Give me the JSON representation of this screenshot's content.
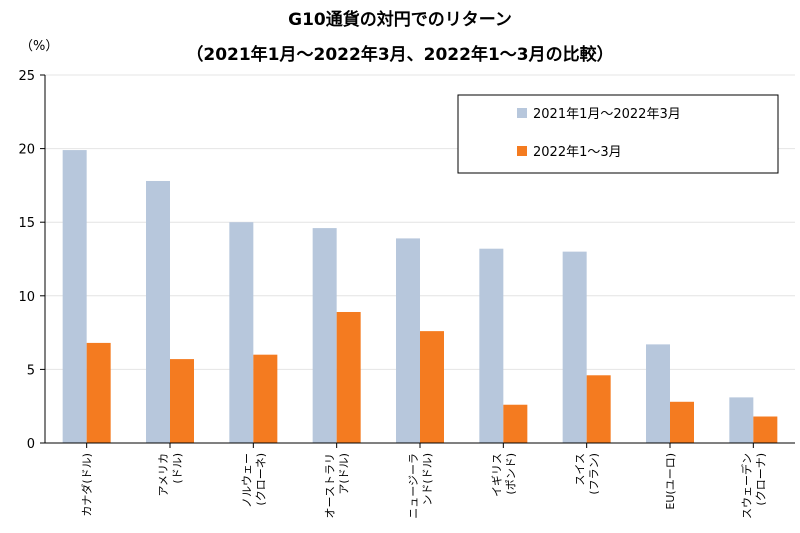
{
  "chart_data": {
    "type": "bar",
    "title": "G10通貨の対円でのリターン",
    "subtitle": "（2021年1月～2022年3月、2022年1～3月の比較）",
    "ylabel": "（%）",
    "ylim": [
      0,
      25
    ],
    "yticks": [
      "0",
      "5",
      "10",
      "15",
      "20",
      "25"
    ],
    "grid": true,
    "legend_position": "top-right",
    "categories": [
      [
        "カナダ(ドル)"
      ],
      [
        "アメリカ",
        "(ドル)"
      ],
      [
        "ノルウェー",
        "(クローネ)"
      ],
      [
        "オーストラリ",
        "ア(ドル)"
      ],
      [
        "ニュージーラ",
        "ンド(ドル)"
      ],
      [
        "イギリス",
        "(ポンド)"
      ],
      [
        "スイス",
        "(フラン)"
      ],
      [
        "EU(ユーロ)"
      ],
      [
        "スウェーデン",
        "(クローナ)"
      ]
    ],
    "series": [
      {
        "name": "2021年1月～2022年3月",
        "color": "#b7c7dc",
        "values": [
          19.9,
          17.8,
          15.0,
          14.6,
          13.9,
          13.2,
          13.0,
          6.7,
          3.1
        ]
      },
      {
        "name": "2022年1～3月",
        "color": "#f47b20",
        "values": [
          6.8,
          5.7,
          6.0,
          8.9,
          7.6,
          2.6,
          4.6,
          2.8,
          1.8
        ]
      }
    ]
  }
}
